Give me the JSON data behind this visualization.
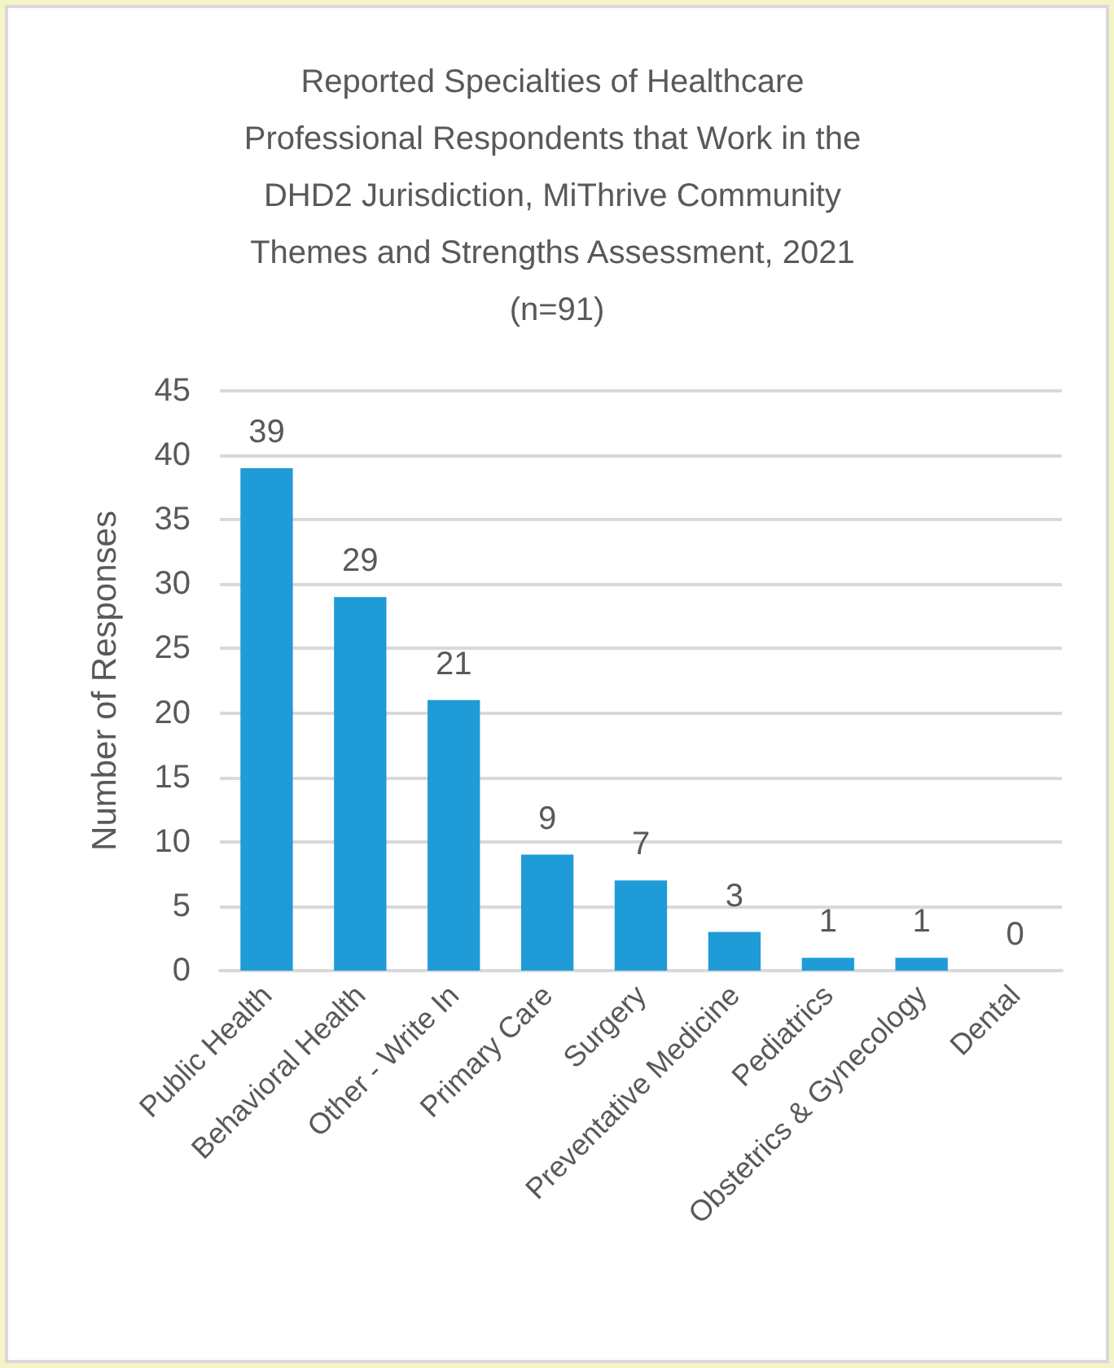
{
  "chart_data": {
    "type": "bar",
    "title": "Reported Specialties of Healthcare Professional Respondents that Work in the DHD2 Jurisdiction, MiThrive Community Themes and Strengths Assessment, 2021 (n=91)",
    "ylabel": "Number of Responses",
    "categories": [
      "Public Health",
      "Behavioral Health",
      "Other - Write In",
      "Primary Care",
      "Surgery",
      "Preventative Medicine",
      "Pediatrics",
      "Obstetrics & Gynecology",
      "Dental"
    ],
    "values": [
      39,
      29,
      21,
      9,
      7,
      3,
      1,
      1,
      0
    ],
    "color": "#1f9bd7",
    "ylim": [
      0,
      45
    ],
    "yticks": [
      0,
      5,
      10,
      15,
      20,
      25,
      30,
      35,
      40,
      45
    ],
    "grid": "y",
    "data_labels": true
  }
}
